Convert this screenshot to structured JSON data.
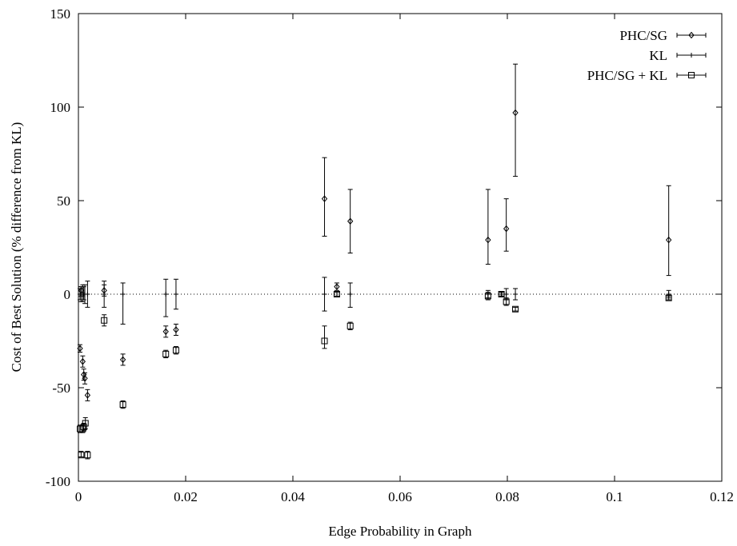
{
  "chart_data": {
    "type": "scatter",
    "xlabel": "Edge Probability in Graph",
    "ylabel": "Cost of Best Solution (% difference from KL)",
    "xlim": [
      0,
      0.12
    ],
    "ylim": [
      -100,
      150
    ],
    "xticks": [
      0,
      0.02,
      0.04,
      0.06,
      0.08,
      0.1,
      0.12
    ],
    "xtick_labels": [
      "0",
      "0.02",
      "0.04",
      "0.06",
      "0.08",
      "0.1",
      "0.12"
    ],
    "yticks": [
      -100,
      -50,
      0,
      50,
      100,
      150
    ],
    "ytick_labels": [
      "-100",
      "-50",
      "0",
      "50",
      "100",
      "150"
    ],
    "reference_line": 0,
    "legend_position": "top-right",
    "series": [
      {
        "name": "PHC/SG",
        "marker": "diamond",
        "points": [
          {
            "x": 0.0003,
            "y": -29,
            "lo": -31,
            "hi": -27
          },
          {
            "x": 0.0005,
            "y": 2,
            "lo": -1,
            "hi": 4
          },
          {
            "x": 0.0008,
            "y": -36,
            "lo": -39,
            "hi": -33
          },
          {
            "x": 0.001,
            "y": -43,
            "lo": -46,
            "hi": -40
          },
          {
            "x": 0.0012,
            "y": -45,
            "lo": -48,
            "hi": -42
          },
          {
            "x": 0.0017,
            "y": -54,
            "lo": -57,
            "hi": -51
          },
          {
            "x": 0.0048,
            "y": 2,
            "lo": -1,
            "hi": 5
          },
          {
            "x": 0.0083,
            "y": -35,
            "lo": -38,
            "hi": -32
          },
          {
            "x": 0.0163,
            "y": -20,
            "lo": -23,
            "hi": -17
          },
          {
            "x": 0.0182,
            "y": -19,
            "lo": -22,
            "hi": -16
          },
          {
            "x": 0.0459,
            "y": 51,
            "lo": 31,
            "hi": 73
          },
          {
            "x": 0.0482,
            "y": 4,
            "lo": 2,
            "hi": 6
          },
          {
            "x": 0.0507,
            "y": 39,
            "lo": 22,
            "hi": 56
          },
          {
            "x": 0.0764,
            "y": 29,
            "lo": 16,
            "hi": 56
          },
          {
            "x": 0.0798,
            "y": 35,
            "lo": 23,
            "hi": 51
          },
          {
            "x": 0.0815,
            "y": 97,
            "lo": 63,
            "hi": 123
          },
          {
            "x": 0.1101,
            "y": 29,
            "lo": 10,
            "hi": 58
          }
        ]
      },
      {
        "name": "KL",
        "marker": "plus",
        "points": [
          {
            "x": 0.0003,
            "y": 0,
            "lo": -3,
            "hi": 3
          },
          {
            "x": 0.0005,
            "y": 0,
            "lo": -4,
            "hi": 4
          },
          {
            "x": 0.0008,
            "y": 0,
            "lo": -4,
            "hi": 5
          },
          {
            "x": 0.001,
            "y": 0,
            "lo": -3,
            "hi": 4
          },
          {
            "x": 0.0012,
            "y": 0,
            "lo": -5,
            "hi": 5
          },
          {
            "x": 0.0017,
            "y": 0,
            "lo": -7,
            "hi": 7
          },
          {
            "x": 0.0048,
            "y": 0,
            "lo": -7,
            "hi": 7
          },
          {
            "x": 0.0083,
            "y": 0,
            "lo": -16,
            "hi": 6
          },
          {
            "x": 0.0163,
            "y": 0,
            "lo": -12,
            "hi": 8
          },
          {
            "x": 0.0182,
            "y": 0,
            "lo": -8,
            "hi": 8
          },
          {
            "x": 0.0459,
            "y": 0,
            "lo": -9,
            "hi": 9
          },
          {
            "x": 0.0507,
            "y": 0,
            "lo": -7,
            "hi": 6
          },
          {
            "x": 0.0764,
            "y": 0,
            "lo": -2,
            "hi": 2
          },
          {
            "x": 0.0789,
            "y": 0,
            "lo": -1,
            "hi": 1
          },
          {
            "x": 0.0798,
            "y": 0,
            "lo": -3,
            "hi": 3
          },
          {
            "x": 0.0815,
            "y": 0,
            "lo": -3,
            "hi": 3
          },
          {
            "x": 0.1101,
            "y": 0,
            "lo": -2,
            "hi": 2
          }
        ]
      },
      {
        "name": "PHC/SG + KL",
        "marker": "square",
        "points": [
          {
            "x": 0.0003,
            "y": -72,
            "lo": -74,
            "hi": -70
          },
          {
            "x": 0.0005,
            "y": -86,
            "lo": -87,
            "hi": -84
          },
          {
            "x": 0.0008,
            "y": -72,
            "lo": -74,
            "hi": -70
          },
          {
            "x": 0.001,
            "y": -71,
            "lo": -73,
            "hi": -69
          },
          {
            "x": 0.0013,
            "y": -69,
            "lo": -72,
            "hi": -66
          },
          {
            "x": 0.0017,
            "y": -86,
            "lo": -88,
            "hi": -84
          },
          {
            "x": 0.0048,
            "y": -14,
            "lo": -17,
            "hi": -11
          },
          {
            "x": 0.0083,
            "y": -59,
            "lo": -61,
            "hi": -57
          },
          {
            "x": 0.0163,
            "y": -32,
            "lo": -34,
            "hi": -30
          },
          {
            "x": 0.0182,
            "y": -30,
            "lo": -32,
            "hi": -28
          },
          {
            "x": 0.0459,
            "y": -25,
            "lo": -29,
            "hi": -17
          },
          {
            "x": 0.0482,
            "y": 0,
            "lo": -1,
            "hi": 1
          },
          {
            "x": 0.0507,
            "y": -17,
            "lo": -19,
            "hi": -15
          },
          {
            "x": 0.0764,
            "y": -1,
            "lo": -3,
            "hi": 1
          },
          {
            "x": 0.0789,
            "y": 0,
            "lo": -1,
            "hi": 1
          },
          {
            "x": 0.0798,
            "y": -4,
            "lo": -6,
            "hi": -2
          },
          {
            "x": 0.0815,
            "y": -8,
            "lo": -9,
            "hi": -7
          },
          {
            "x": 0.1101,
            "y": -2,
            "lo": -3,
            "hi": -1
          }
        ]
      }
    ]
  }
}
